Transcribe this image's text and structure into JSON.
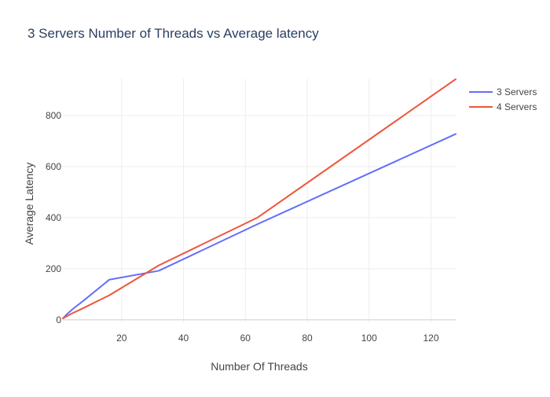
{
  "chart_data": {
    "type": "line",
    "title": "3 Servers Number of Threads vs Average latency",
    "xlabel": "Number Of Threads",
    "ylabel": "Average Latency",
    "xlim": [
      1,
      128
    ],
    "ylim": [
      -10,
      945
    ],
    "xticks": [
      20,
      40,
      60,
      80,
      100,
      120
    ],
    "yticks": [
      0,
      200,
      400,
      600,
      800
    ],
    "grid": true,
    "legend_position": "top-right",
    "series": [
      {
        "name": "3 Servers",
        "color": "#636efa",
        "x": [
          1,
          2,
          4,
          8,
          16,
          32,
          64,
          128
        ],
        "y": [
          5,
          18,
          40,
          78,
          157,
          192,
          375,
          728
        ]
      },
      {
        "name": "4 Servers",
        "color": "#ef553b",
        "x": [
          1,
          2,
          4,
          8,
          16,
          32,
          64,
          128
        ],
        "y": [
          5,
          12,
          25,
          48,
          96,
          213,
          401,
          943
        ]
      }
    ]
  }
}
